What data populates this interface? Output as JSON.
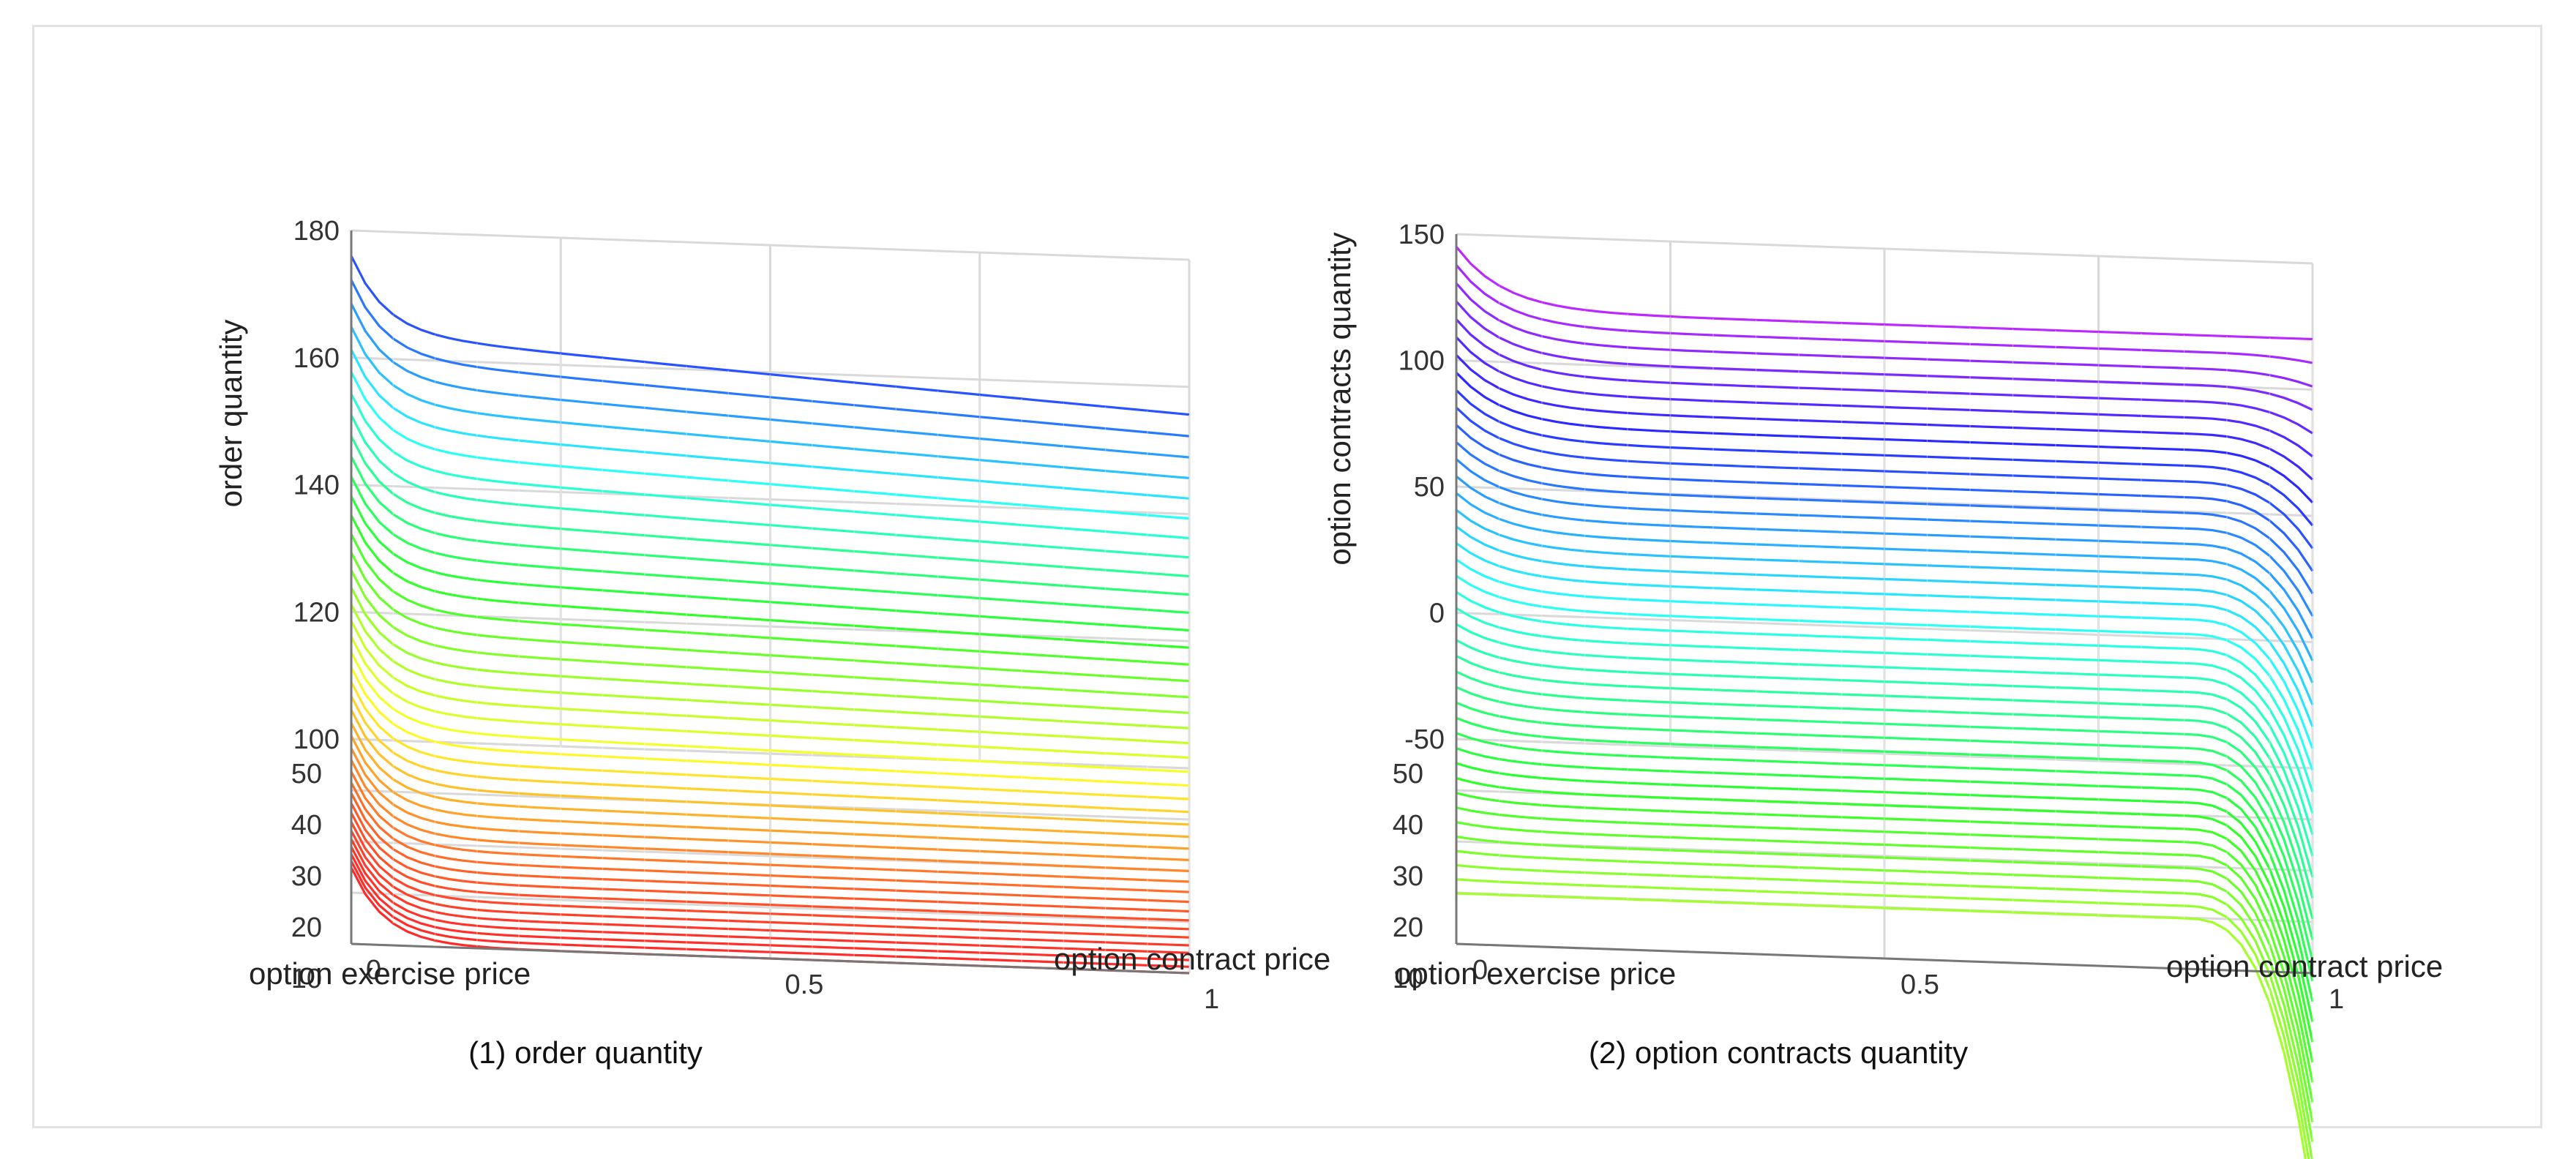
{
  "chart_data": [
    {
      "type": "surface",
      "caption": "(1) order quantity",
      "zlabel": "order quantity",
      "xlabel": "option contract price",
      "ylabel": "option exercise price",
      "xticks": [
        "0",
        "0.5",
        "1"
      ],
      "yticks": [
        "10",
        "20",
        "30",
        "40",
        "50"
      ],
      "zticks": [
        "100",
        "120",
        "140",
        "160",
        "180"
      ],
      "xlim": [
        0,
        1
      ],
      "ylim": [
        10,
        50
      ],
      "zlim": [
        100,
        180
      ],
      "colormap": "hsv",
      "surface": "order quantity ≈ 170 at contract price 0 and exercise price 50, rising steeply near contract price 0, decaying to ≈ 100 at contract price 1 and exercise price 10"
    },
    {
      "type": "surface",
      "caption": "(2) option contracts quantity",
      "zlabel": "option contracts quantity",
      "xlabel": "option contract price",
      "ylabel": "option exercise price",
      "xticks": [
        "0",
        "0.5",
        "1"
      ],
      "yticks": [
        "10",
        "20",
        "30",
        "40",
        "50"
      ],
      "zticks": [
        "-50",
        "0",
        "50",
        "100",
        "150"
      ],
      "xlim": [
        0,
        1
      ],
      "ylim": [
        10,
        50
      ],
      "zlim": [
        -50,
        150
      ],
      "colormap": "hsv",
      "surface": "option contracts quantity ≈ 140 at contract price 0 and exercise price 50, decreasing with exercise price to ≈ -30 near exercise price 10, dipping below -50 near contract price 1"
    }
  ]
}
